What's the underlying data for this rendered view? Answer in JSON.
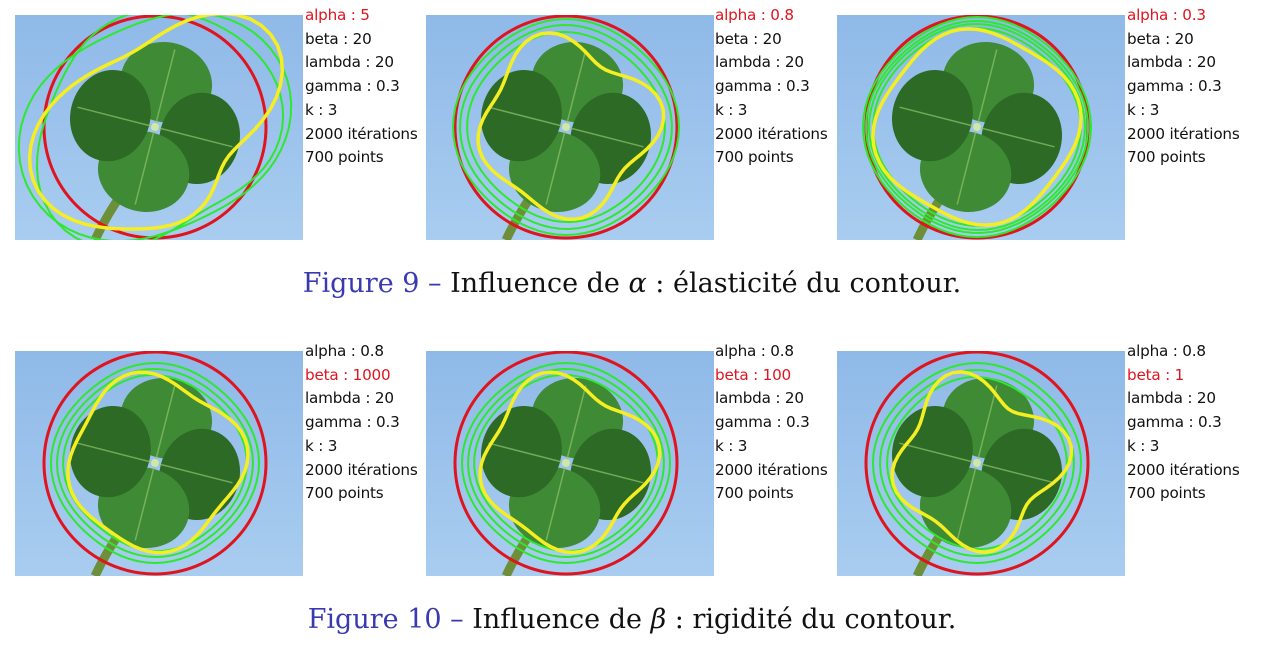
{
  "figures": [
    {
      "label": "Figure 9",
      "separator": " – ",
      "text_before": "Influence de ",
      "symbol": "α",
      "text_after": " : élasticité du contour.",
      "panels": [
        {
          "params": [
            "alpha : 5",
            "beta : 20",
            "lambda : 20",
            "gamma : 0.3",
            "k : 3",
            "2000 itérations",
            "700 points"
          ],
          "highlight_index": 0
        },
        {
          "params": [
            "alpha : 0.8",
            "beta : 20",
            "lambda : 20",
            "gamma : 0.3",
            "k : 3",
            "2000 itérations",
            "700 points"
          ],
          "highlight_index": 0
        },
        {
          "params": [
            "alpha : 0.3",
            "beta : 20",
            "lambda : 20",
            "gamma : 0.3",
            "k : 3",
            "2000 itérations",
            "700 points"
          ],
          "highlight_index": 0
        }
      ]
    },
    {
      "label": "Figure 10",
      "separator": " – ",
      "text_before": "Influence de ",
      "symbol": "β",
      "text_after": " : rigidité du contour.",
      "panels": [
        {
          "params": [
            "alpha : 0.8",
            "beta : 1000",
            "lambda : 20",
            "gamma : 0.3",
            "k : 3",
            "2000 itérations",
            "700 points"
          ],
          "highlight_index": 1
        },
        {
          "params": [
            "alpha : 0.8",
            "beta : 100",
            "lambda : 20",
            "gamma : 0.3",
            "k : 3",
            "2000 itérations",
            "700 points"
          ],
          "highlight_index": 1
        },
        {
          "params": [
            "alpha : 0.8",
            "beta : 1",
            "lambda : 20",
            "gamma : 0.3",
            "k : 3",
            "2000 itérations",
            "700 points"
          ],
          "highlight_index": 1
        }
      ]
    }
  ],
  "colors": {
    "sky_top": "#8fb9e8",
    "sky_bottom": "#a9cdf0",
    "leaf": "#3f8a34",
    "leaf_dark": "#2c6a25",
    "initial_contour": "#e0141e",
    "intermediate_contours": "#2ee82e",
    "final_contour": "#f5ee22",
    "highlight_text": "#e0141e",
    "figure_label": "#3a3ab0"
  }
}
